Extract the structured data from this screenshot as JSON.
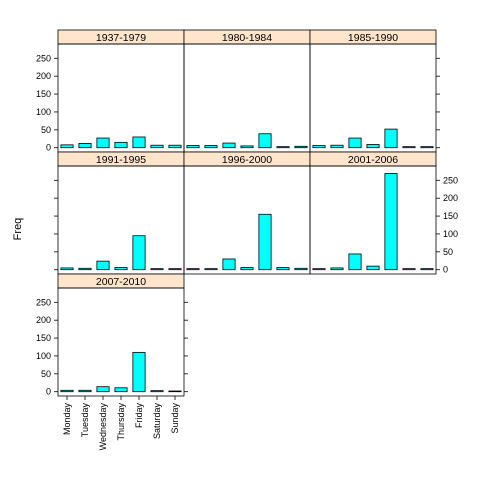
{
  "chart_data": {
    "type": "bar",
    "ylabel": "Freq",
    "ylim": [
      -12,
      290
    ],
    "yticks": [
      0,
      50,
      100,
      150,
      200,
      250
    ],
    "categories": [
      "Monday",
      "Tuesday",
      "Wednesday",
      "Thursday",
      "Friday",
      "Saturday",
      "Sunday"
    ],
    "bar_fill": "#00ffff",
    "strip_fill": "#ffe5cc",
    "panels": [
      {
        "name": "1937-1979",
        "values": [
          8,
          12,
          27,
          15,
          30,
          7,
          7
        ]
      },
      {
        "name": "1980-1984",
        "values": [
          6,
          6,
          13,
          5,
          39,
          3,
          4
        ]
      },
      {
        "name": "1985-1990",
        "values": [
          6,
          7,
          27,
          9,
          52,
          3,
          3
        ]
      },
      {
        "name": "1991-1995",
        "values": [
          5,
          4,
          24,
          6,
          95,
          3,
          3
        ]
      },
      {
        "name": "1996-2000",
        "values": [
          3,
          3,
          30,
          6,
          155,
          6,
          4
        ]
      },
      {
        "name": "2001-2006",
        "values": [
          3,
          5,
          44,
          10,
          269,
          3,
          3
        ]
      },
      {
        "name": "2007-2010",
        "values": [
          4,
          4,
          14,
          11,
          110,
          3,
          2
        ]
      }
    ]
  }
}
